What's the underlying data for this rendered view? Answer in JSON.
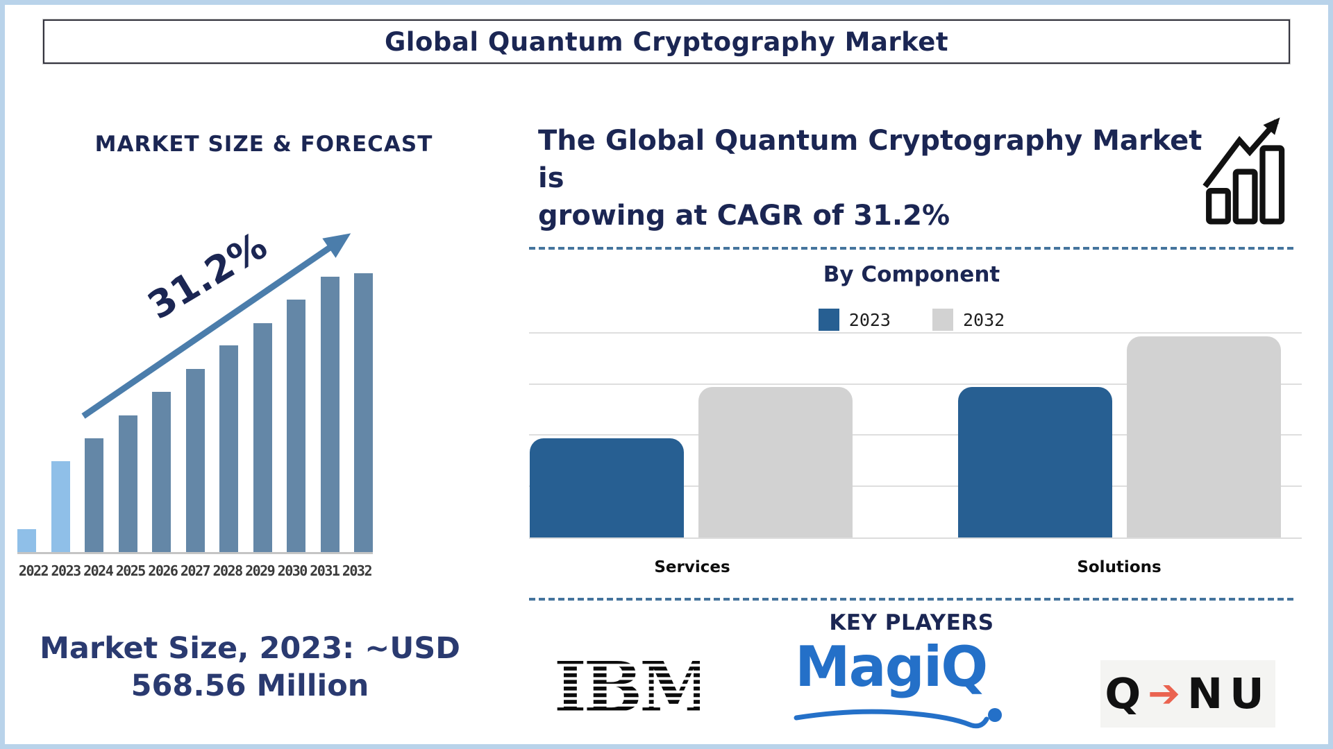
{
  "page": {
    "title": "Global Quantum Cryptography Market",
    "colors": {
      "navy_text": "#1b2653",
      "frame_blue": "#b9d3ea",
      "dashed_separator": "#45749d"
    }
  },
  "market_size_section": {
    "heading": "MARKET SIZE & FORECAST",
    "growth_annotation": "31.2%",
    "market_size_line1": "Market Size, 2023: ~USD",
    "market_size_line2": "568.56 Million",
    "chart_data": {
      "type": "bar",
      "title": "MARKET SIZE & FORECAST",
      "categories": [
        "2022",
        "2023",
        "2024",
        "2025",
        "2026",
        "2027",
        "2028",
        "2029",
        "2030",
        "2031",
        "2032"
      ],
      "values": [
        8.2,
        32.7,
        40.9,
        49.1,
        57.4,
        65.6,
        74.1,
        82.0,
        90.5,
        98.8,
        100
      ],
      "value_note": "no value axis shown; values are relative bar heights as % of tallest (2032) bar",
      "annotation": "31.2% growth arrow across bars",
      "highlight_years": [
        "2022",
        "2023"
      ],
      "highlight_color": "#8fbfe8",
      "bar_color": "#6487a7",
      "arrow_color": "#4b7dab",
      "xlabel": "",
      "ylabel": "",
      "grid": false,
      "legend": "none"
    }
  },
  "cagr_banner": {
    "line1": "The Global Quantum Cryptography Market is",
    "line2": "growing at CAGR of 31.2%",
    "icon": "growth-chart-icon"
  },
  "by_component": {
    "heading": "By Component",
    "legend": [
      {
        "label": "2023",
        "color": "#275f92"
      },
      {
        "label": "2032",
        "color": "#d2d2d2"
      }
    ],
    "chart_data": {
      "type": "bar",
      "subtype": "grouped",
      "title": "By Component",
      "categories": [
        "Services",
        "Solutions"
      ],
      "series": [
        {
          "name": "2023",
          "color": "#275f92",
          "values": [
            1.95,
            2.95
          ]
        },
        {
          "name": "2032",
          "color": "#d2d2d2",
          "values": [
            2.95,
            3.95
          ]
        }
      ],
      "ylim": [
        0,
        4.7
      ],
      "gridlines": [
        1,
        2,
        3,
        4
      ],
      "value_note": "no value axis labels shown; values estimated in gridline units (bar tops sit at 2nd, 3rd and 4th gridlines)",
      "grid": true,
      "legend_position": "top-center"
    }
  },
  "key_players": {
    "heading": "KEY PLAYERS",
    "players": [
      {
        "name": "IBM"
      },
      {
        "name": "MagiQ"
      },
      {
        "name": "QNU",
        "q_text": "Q",
        "arrow": "➔",
        "nu_text": "NU"
      }
    ],
    "magiq_color": "#2470c8",
    "qnu_arrow_color": "#ea6350"
  }
}
